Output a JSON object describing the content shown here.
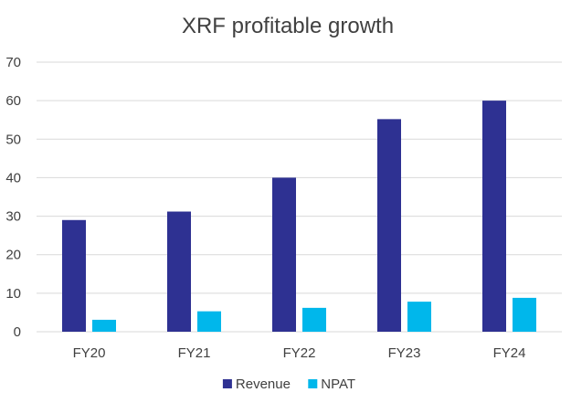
{
  "chart_data": {
    "type": "bar",
    "title": "XRF profitable growth",
    "categories": [
      "FY20",
      "FY21",
      "FY22",
      "FY23",
      "FY24"
    ],
    "series": [
      {
        "name": "Revenue",
        "values": [
          29,
          31.2,
          40,
          55.2,
          60
        ],
        "color": "#2E3192"
      },
      {
        "name": "NPAT",
        "values": [
          3.1,
          5.3,
          6.2,
          7.8,
          8.8
        ],
        "color": "#00B7EB"
      }
    ],
    "ylim": [
      0,
      70
    ],
    "yticks": [
      "0",
      "10",
      "20",
      "30",
      "40",
      "50",
      "60",
      "70"
    ],
    "xlabel": "",
    "ylabel": "",
    "grid": true,
    "legend": "bottom-center"
  }
}
